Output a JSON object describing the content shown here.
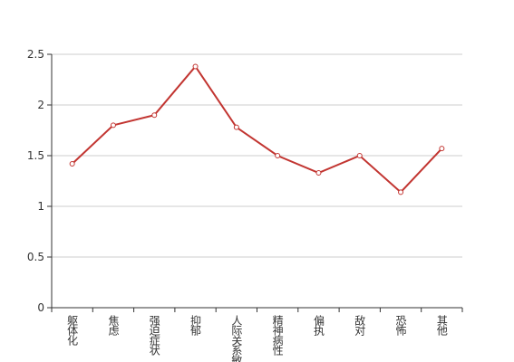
{
  "chart_data": {
    "type": "line",
    "categories": [
      "躯体化",
      "焦虑",
      "强迫症状",
      "抑郁",
      "人际关系敏感",
      "精神病性",
      "偏执",
      "敌对",
      "恐怖",
      "其他"
    ],
    "values": [
      1.42,
      1.8,
      1.9,
      2.38,
      1.78,
      1.5,
      1.33,
      1.5,
      1.14,
      1.57
    ],
    "color": "#c23531",
    "ylim": [
      0,
      2.5
    ],
    "yticks": [
      0,
      0.5,
      1,
      1.5,
      2,
      2.5
    ],
    "grid": true
  }
}
